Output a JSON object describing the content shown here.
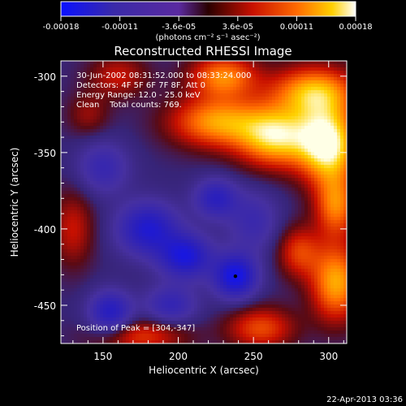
{
  "chart_data": {
    "type": "heatmap",
    "title": "Reconstructed RHESSI Image",
    "xlabel": "Heliocentric X (arcsec)",
    "ylabel": "Heliocentric Y (arcsec)",
    "xlim": [
      122,
      312
    ],
    "ylim": [
      -475,
      -290
    ],
    "xticks": [
      150,
      200,
      250,
      300
    ],
    "yticks": [
      -300,
      -350,
      -400,
      -450
    ],
    "colorbar": {
      "range": [
        -0.00018,
        0.00018
      ],
      "ticks": [
        "-0.00018",
        "-0.00011",
        "-3.6e-05",
        "3.6e-05",
        "0.00011",
        "0.00018"
      ],
      "unit_label": "(photons cm⁻² s⁻¹ asec⁻²)",
      "colors": [
        "#0a10ff",
        "#3a2aa8",
        "#5a2aa0",
        "#2a0000",
        "#c81000",
        "#ff6a00",
        "#ffd000",
        "#ffffff"
      ]
    },
    "annotations": [
      "30-Jun-2002 08:31:52.000 to 08:33:24.000",
      "Detectors: 4F 5F 6F 7F 8F, Att 0",
      "Energy Range: 12.0 - 25.0 keV",
      "Clean    Total counts: 769."
    ],
    "peak_label": "Position of Peak = [304,-347]",
    "peak": {
      "x": 304,
      "y": -347
    },
    "minimum_marker": {
      "x": 238,
      "y": -431
    },
    "blobs": [
      {
        "x": 300,
        "y": -345,
        "sx": 14,
        "sy": 18,
        "a": 1.0
      },
      {
        "x": 265,
        "y": -340,
        "sx": 18,
        "sy": 14,
        "a": 0.85
      },
      {
        "x": 225,
        "y": -330,
        "sx": 22,
        "sy": 12,
        "a": 0.7
      },
      {
        "x": 290,
        "y": -310,
        "sx": 20,
        "sy": 12,
        "a": 0.75
      },
      {
        "x": 230,
        "y": -300,
        "sx": 16,
        "sy": 10,
        "a": 0.65
      },
      {
        "x": 160,
        "y": -300,
        "sx": 14,
        "sy": 10,
        "a": 0.35
      },
      {
        "x": 305,
        "y": -385,
        "sx": 10,
        "sy": 14,
        "a": 0.6
      },
      {
        "x": 305,
        "y": -435,
        "sx": 12,
        "sy": 18,
        "a": 0.75
      },
      {
        "x": 280,
        "y": -415,
        "sx": 10,
        "sy": 12,
        "a": 0.45
      },
      {
        "x": 255,
        "y": -465,
        "sx": 16,
        "sy": 10,
        "a": 0.5
      },
      {
        "x": 175,
        "y": -470,
        "sx": 22,
        "sy": 8,
        "a": 0.45
      },
      {
        "x": 130,
        "y": -400,
        "sx": 10,
        "sy": 18,
        "a": 0.35
      },
      {
        "x": 140,
        "y": -325,
        "sx": 10,
        "sy": 10,
        "a": 0.25
      },
      {
        "x": 180,
        "y": -400,
        "sx": 14,
        "sy": 12,
        "a": -0.7
      },
      {
        "x": 205,
        "y": -418,
        "sx": 12,
        "sy": 10,
        "a": -0.75
      },
      {
        "x": 238,
        "y": -431,
        "sx": 10,
        "sy": 10,
        "a": -0.85
      },
      {
        "x": 155,
        "y": -455,
        "sx": 10,
        "sy": 10,
        "a": -0.65
      },
      {
        "x": 225,
        "y": -380,
        "sx": 10,
        "sy": 9,
        "a": -0.55
      },
      {
        "x": 150,
        "y": -360,
        "sx": 12,
        "sy": 12,
        "a": -0.4
      },
      {
        "x": 195,
        "y": -450,
        "sx": 12,
        "sy": 9,
        "a": -0.45
      },
      {
        "x": 250,
        "y": -395,
        "sx": 12,
        "sy": 14,
        "a": -0.35
      }
    ]
  },
  "footer": {
    "date": "22-Apr-2013 03:36"
  }
}
